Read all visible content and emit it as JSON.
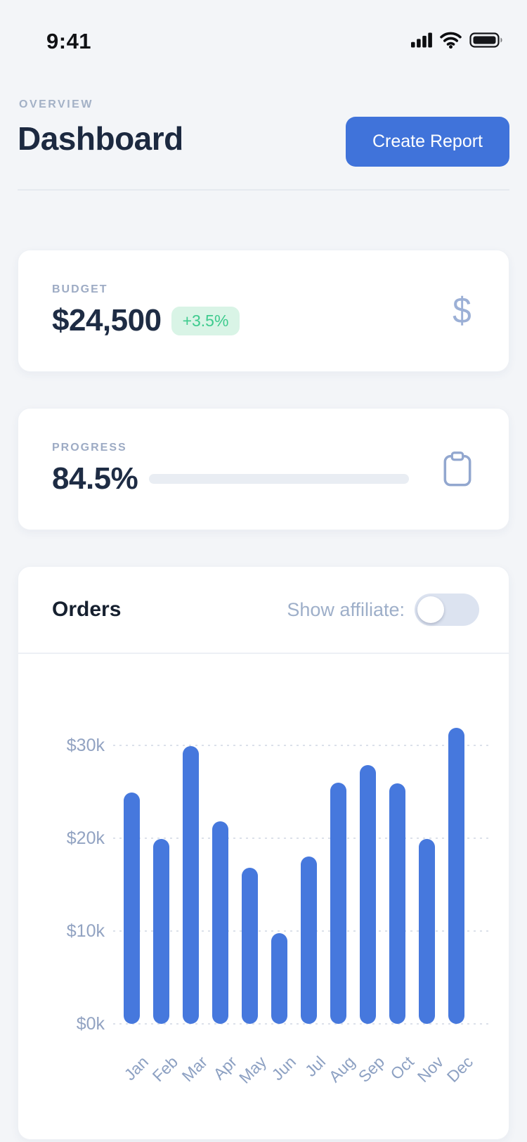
{
  "status_bar": {
    "time": "9:41"
  },
  "header": {
    "eyebrow": "OVERVIEW",
    "title": "Dashboard",
    "create_report_label": "Create Report"
  },
  "budget_card": {
    "label": "BUDGET",
    "value": "$24,500",
    "delta": "+3.5%",
    "icon_glyph": "$"
  },
  "progress_card": {
    "label": "PROGRESS",
    "value": "84.5%",
    "progress_percent": 85
  },
  "orders_card": {
    "title": "Orders",
    "toggle_label": "Show affiliate:",
    "toggle_state": "off",
    "chart_data": {
      "type": "bar",
      "categories": [
        "Jan",
        "Feb",
        "Mar",
        "Apr",
        "May",
        "Jun",
        "Jul",
        "Aug",
        "Sep",
        "Oct",
        "Nov",
        "Dec"
      ],
      "values": [
        24.9,
        19.9,
        29.9,
        21.8,
        16.8,
        9.8,
        18.0,
        26.0,
        27.9,
        25.9,
        19.9,
        31.9
      ],
      "unit": "thousand dollars",
      "yticks": [
        {
          "label": "$0k",
          "value": 0
        },
        {
          "label": "$10k",
          "value": 10
        },
        {
          "label": "$20k",
          "value": 20
        },
        {
          "label": "$30k",
          "value": 30
        }
      ],
      "ylim": [
        0,
        33
      ],
      "grid": "dotted-horizontal",
      "legend": "none",
      "title": "Orders",
      "xlabel": "",
      "ylabel": ""
    }
  },
  "colors": {
    "accent_blue": "#4073da",
    "bar_blue": "#4678dd",
    "badge_green_text": "#3ecb8e",
    "badge_green_bg": "#d9f4e6",
    "navy_text": "#1e2c44",
    "muted_label": "#9dabc4",
    "page_bg": "#f3f5f8"
  }
}
